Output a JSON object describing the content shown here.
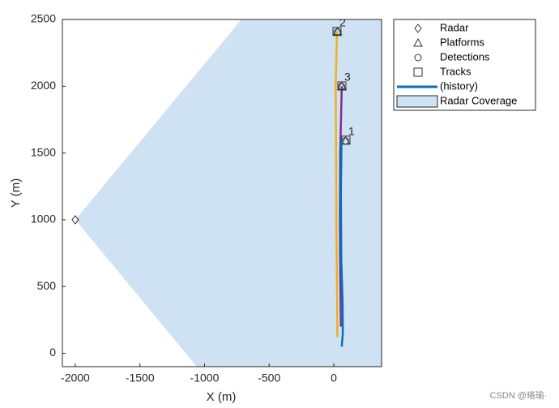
{
  "chart_data": {
    "type": "theater",
    "xlabel": "X (m)",
    "ylabel": "Y (m)",
    "xlim": [
      -2100,
      370
    ],
    "ylim": [
      -100,
      2500
    ],
    "xticks": [
      -2000,
      -1500,
      -1000,
      -500,
      0
    ],
    "yticks": [
      0,
      500,
      1000,
      1500,
      2000,
      2500
    ],
    "coverage": {
      "name": "Radar Coverage",
      "color": "#cfe2f3",
      "x": [
        -2000,
        -715,
        370,
        370,
        -1060
      ],
      "y": [
        1000,
        2500,
        2500,
        -100,
        -100
      ]
    },
    "series": [
      {
        "name": "Radar",
        "marker": "diamond",
        "x": [
          -2000
        ],
        "y": [
          1000
        ]
      },
      {
        "name": "Platforms",
        "marker": "triangle",
        "x": [
          30,
          62,
          92
        ],
        "y": [
          2410,
          2000,
          1592
        ]
      },
      {
        "name": "Detections",
        "marker": "circle",
        "x": [
          28,
          60,
          90
        ],
        "y": [
          2405,
          1998,
          1590
        ]
      },
      {
        "name": "Tracks",
        "marker": "square",
        "x": [
          25,
          63,
          94
        ],
        "y": [
          2410,
          2002,
          1596
        ],
        "labels": [
          "2",
          "3",
          "1"
        ]
      },
      {
        "name": "(history)",
        "marker": "line",
        "color": "#0072bd",
        "x": [
          62,
          70,
          68,
          58,
          55,
          60
        ],
        "y": [
          50,
          150,
          400,
          700,
          1200,
          1600
        ]
      }
    ],
    "history": [
      {
        "color": "#7e2f8e",
        "x": [
          55,
          50,
          48,
          50,
          62
        ],
        "y": [
          200,
          600,
          1000,
          1500,
          2000
        ]
      },
      {
        "color": "#edb120",
        "x": [
          28,
          25,
          20,
          18,
          15,
          25
        ],
        "y": [
          120,
          500,
          1000,
          1500,
          2000,
          2410
        ]
      }
    ],
    "watermark": "CSDN @珞瑜·"
  }
}
